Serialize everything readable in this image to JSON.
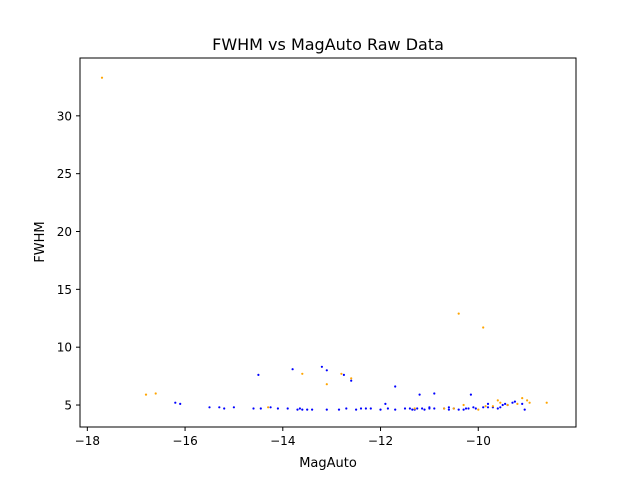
{
  "chart_data": {
    "type": "scatter",
    "title": "FWHM vs MagAuto Raw Data",
    "xlabel": "MagAuto",
    "ylabel": "FWHM",
    "xlim": [
      -18.15,
      -8.0
    ],
    "ylim": [
      3.1,
      35.0
    ],
    "xticks": [
      -18,
      -16,
      -14,
      -12,
      -10
    ],
    "yticks": [
      5,
      10,
      15,
      20,
      25,
      30
    ],
    "xtick_labels": [
      "−18",
      "−16",
      "−14",
      "−12",
      "−10"
    ],
    "ytick_labels": [
      "5",
      "10",
      "15",
      "20",
      "25",
      "30"
    ],
    "grid": false,
    "series": [
      {
        "color": "#0000ff",
        "points": [
          [
            -16.2,
            5.2
          ],
          [
            -16.1,
            5.1
          ],
          [
            -15.5,
            4.8
          ],
          [
            -15.3,
            4.8
          ],
          [
            -15.2,
            4.7
          ],
          [
            -15.0,
            4.8
          ],
          [
            -14.6,
            4.7
          ],
          [
            -14.45,
            4.7
          ],
          [
            -14.25,
            4.8
          ],
          [
            -14.1,
            4.7
          ],
          [
            -13.9,
            4.7
          ],
          [
            -13.7,
            4.6
          ],
          [
            -13.65,
            4.7
          ],
          [
            -13.6,
            4.6
          ],
          [
            -13.5,
            4.6
          ],
          [
            -13.4,
            4.6
          ],
          [
            -13.1,
            4.6
          ],
          [
            -12.85,
            4.6
          ],
          [
            -12.7,
            4.7
          ],
          [
            -12.5,
            4.6
          ],
          [
            -12.4,
            4.7
          ],
          [
            -12.3,
            4.7
          ],
          [
            -12.2,
            4.7
          ],
          [
            -12.0,
            4.6
          ],
          [
            -11.85,
            4.7
          ],
          [
            -11.7,
            4.6
          ],
          [
            -11.5,
            4.7
          ],
          [
            -11.4,
            4.7
          ],
          [
            -11.35,
            4.6
          ],
          [
            -11.3,
            4.6
          ],
          [
            -11.25,
            4.7
          ],
          [
            -11.15,
            4.7
          ],
          [
            -11.1,
            4.6
          ],
          [
            -11.0,
            4.7
          ],
          [
            -10.9,
            4.7
          ],
          [
            -10.7,
            4.7
          ],
          [
            -10.6,
            4.6
          ],
          [
            -10.5,
            4.7
          ],
          [
            -10.4,
            4.6
          ],
          [
            -10.3,
            4.6
          ],
          [
            -10.25,
            4.7
          ],
          [
            -10.2,
            4.7
          ],
          [
            -10.1,
            4.8
          ],
          [
            -10.05,
            4.7
          ],
          [
            -9.9,
            4.8
          ],
          [
            -9.8,
            4.8
          ],
          [
            -9.7,
            4.8
          ],
          [
            -9.6,
            4.7
          ],
          [
            -9.55,
            4.8
          ],
          [
            -9.5,
            5.0
          ],
          [
            -9.45,
            5.1
          ],
          [
            -9.4,
            5.0
          ],
          [
            -9.3,
            5.2
          ],
          [
            -9.25,
            5.3
          ],
          [
            -9.1,
            5.1
          ],
          [
            -9.05,
            4.6
          ],
          [
            -14.5,
            7.6
          ],
          [
            -13.8,
            8.1
          ],
          [
            -13.2,
            8.3
          ],
          [
            -13.1,
            8.0
          ],
          [
            -12.75,
            7.6
          ],
          [
            -12.6,
            7.1
          ],
          [
            -11.7,
            6.6
          ],
          [
            -11.9,
            5.1
          ],
          [
            -11.2,
            5.9
          ],
          [
            -10.9,
            6.0
          ],
          [
            -10.15,
            5.9
          ],
          [
            -9.8,
            5.1
          ],
          [
            -10.6,
            4.8
          ],
          [
            -11.0,
            4.8
          ]
        ]
      },
      {
        "color": "#ffa500",
        "points": [
          [
            -17.7,
            33.3
          ],
          [
            -16.8,
            5.9
          ],
          [
            -16.6,
            6.0
          ],
          [
            -14.3,
            4.8
          ],
          [
            -13.6,
            7.7
          ],
          [
            -13.1,
            6.8
          ],
          [
            -12.8,
            7.7
          ],
          [
            -12.6,
            7.3
          ],
          [
            -10.4,
            12.9
          ],
          [
            -9.9,
            11.7
          ],
          [
            -10.5,
            4.7
          ],
          [
            -10.3,
            5.0
          ],
          [
            -10.0,
            4.6
          ],
          [
            -9.7,
            4.9
          ],
          [
            -9.6,
            5.4
          ],
          [
            -9.55,
            5.2
          ],
          [
            -9.4,
            5.0
          ],
          [
            -9.2,
            5.1
          ],
          [
            -9.1,
            5.6
          ],
          [
            -9.0,
            5.4
          ],
          [
            -8.95,
            5.2
          ],
          [
            -8.6,
            5.2
          ],
          [
            -10.7,
            4.7
          ],
          [
            -11.3,
            4.7
          ],
          [
            -9.85,
            4.9
          ]
        ]
      }
    ]
  }
}
